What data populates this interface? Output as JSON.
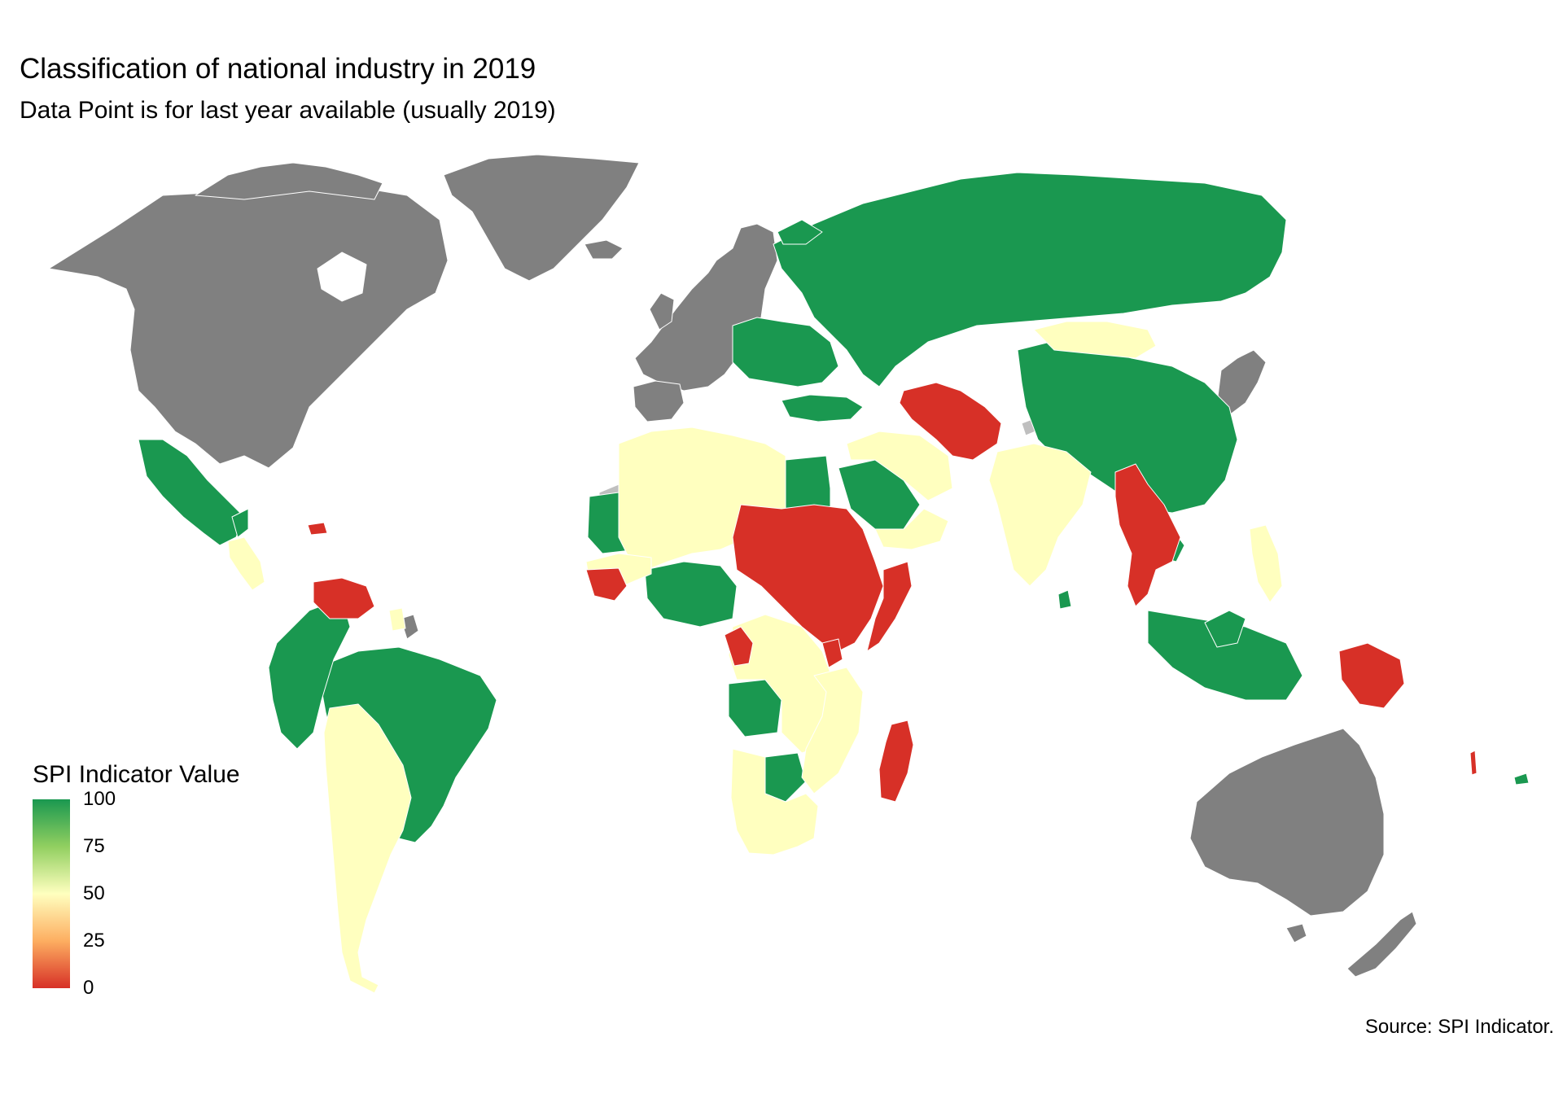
{
  "title": "Classification of national industry in 2019",
  "subtitle": "Data Point is for last year available (usually 2019)",
  "legend": {
    "title": "SPI Indicator Value",
    "ticks": [
      "100",
      "75",
      "50",
      "25",
      "0"
    ],
    "gradient_colors": [
      "#1a9850",
      "#91cf60",
      "#ffffbf",
      "#fdae61",
      "#d73027"
    ]
  },
  "caption": "Source: SPI Indicator.",
  "colors": {
    "high_score": "#1a9850",
    "mid_score": "#ffffbf",
    "low_score": "#d73027",
    "no_data": "#808080",
    "not_covered": "#bfbfbf"
  }
}
